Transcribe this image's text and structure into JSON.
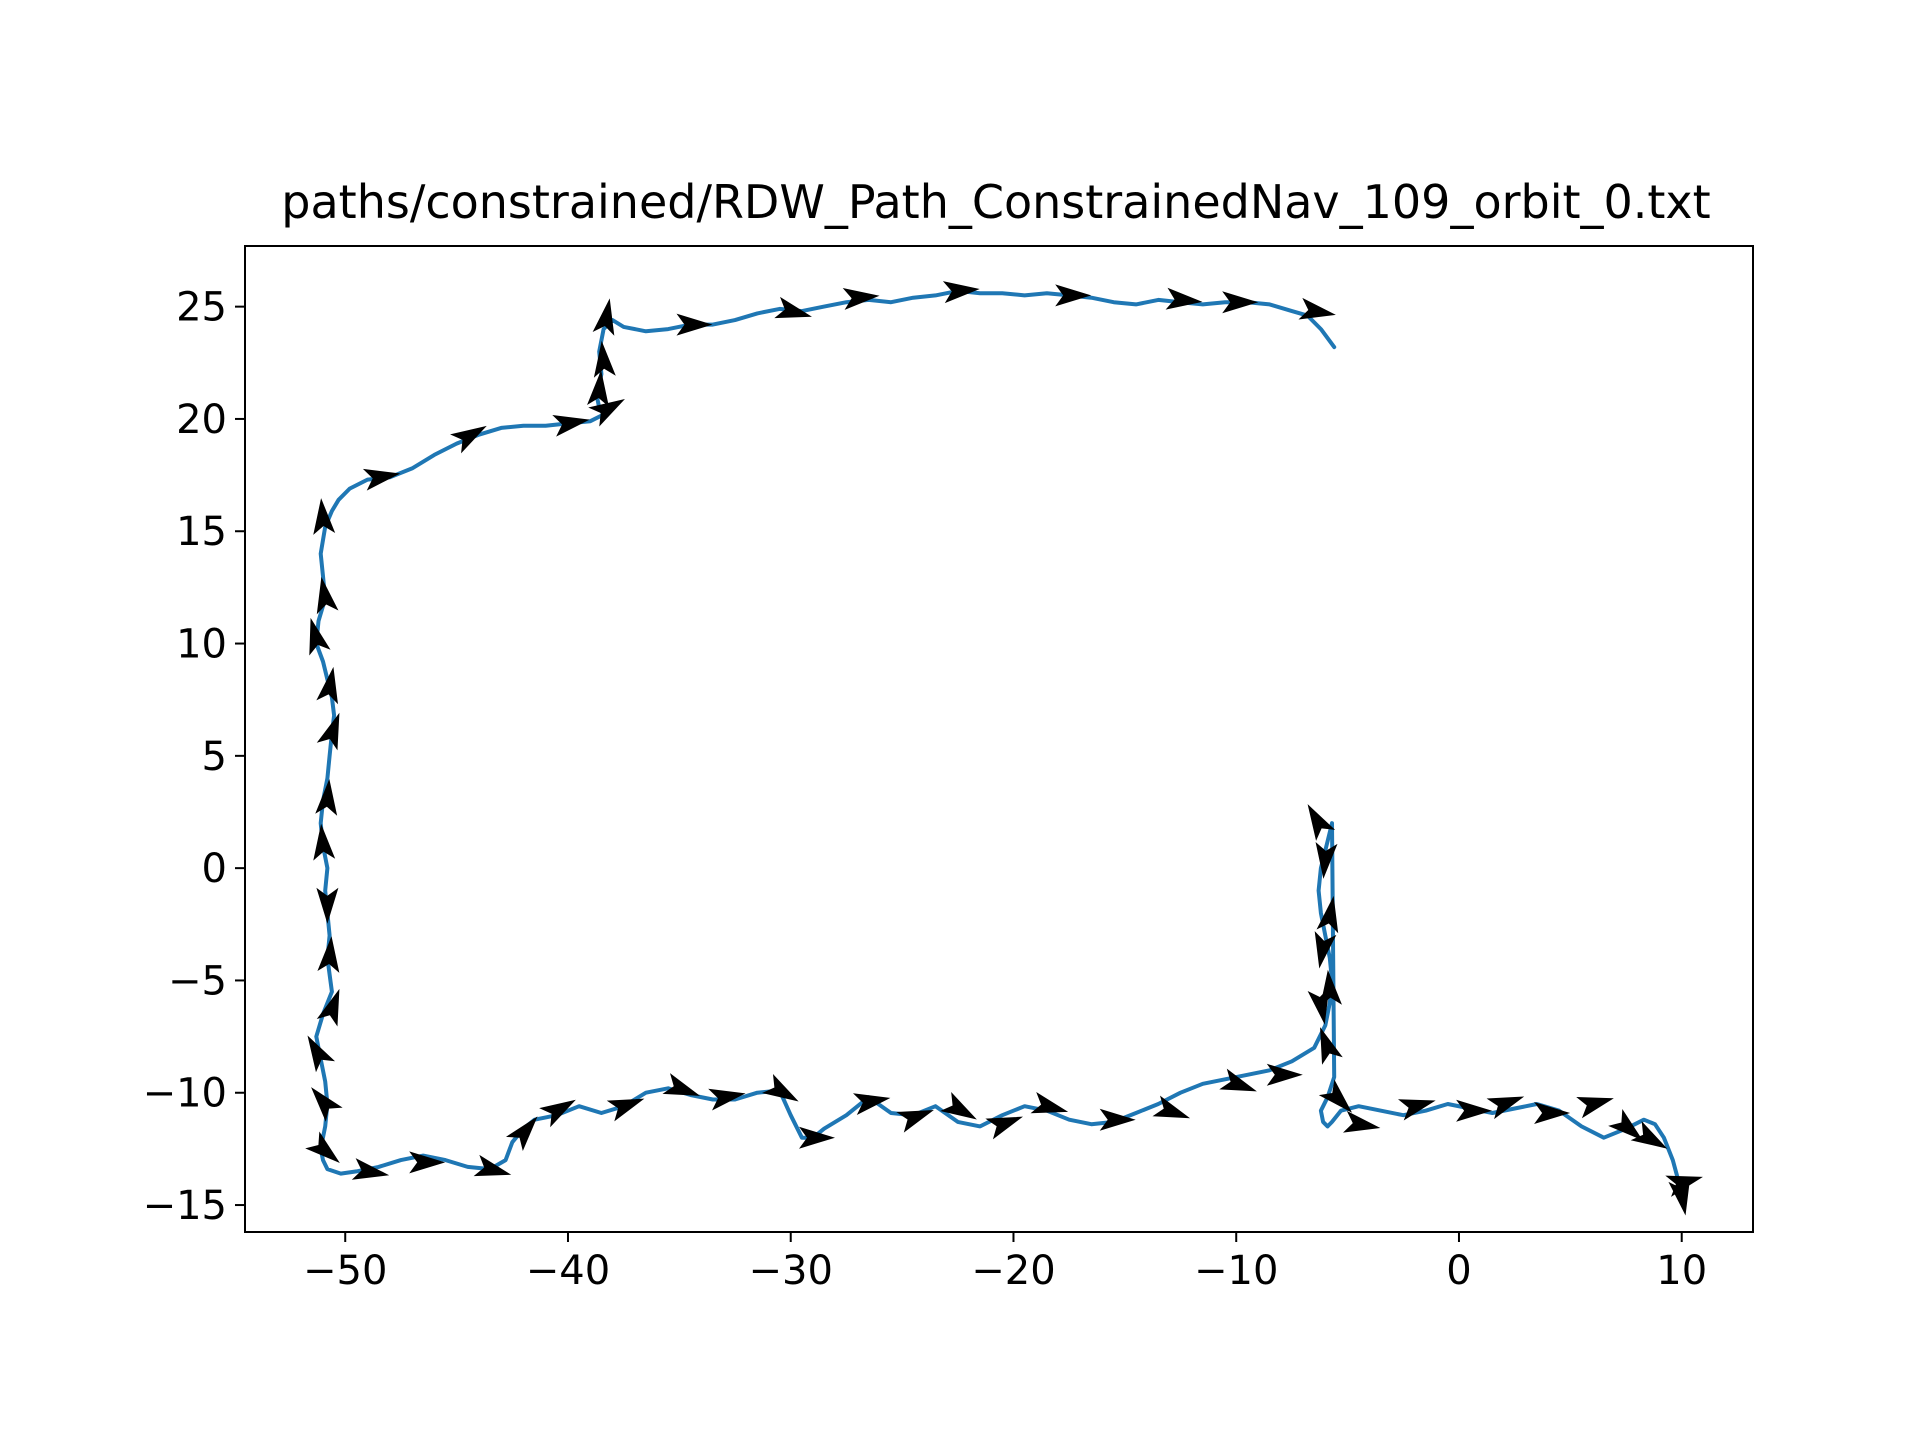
{
  "chart_data": {
    "type": "line",
    "title": "paths/constrained/RDW_Path_ConstrainedNav_109_orbit_0.txt",
    "xlabel": "",
    "ylabel": "",
    "xlim": [
      -54.5,
      13.2
    ],
    "ylim": [
      -16.2,
      27.7
    ],
    "xticks": [
      -50,
      -40,
      -30,
      -20,
      -10,
      0,
      10
    ],
    "yticks": [
      -15,
      -10,
      -5,
      0,
      5,
      10,
      15,
      20,
      25
    ],
    "xtick_labels": [
      "−50",
      "−40",
      "−30",
      "−20",
      "−10",
      "0",
      "10"
    ],
    "ytick_labels": [
      "−15",
      "−10",
      "−5",
      "0",
      "5",
      "10",
      "15",
      "20",
      "25"
    ],
    "grid": false,
    "legend": "none",
    "line_color": "#1f77b4",
    "arrow_color": "#000000",
    "series": [
      {
        "x": [
          -5.6,
          -6.2,
          -6.8,
          -7.5,
          -8.5,
          -9.5,
          -10.5,
          -11.5,
          -12.5,
          -13.5,
          -14.5,
          -15.5,
          -16.5,
          -17.5,
          -18.5,
          -19.5,
          -20.5,
          -21.5,
          -22.5,
          -23.5,
          -24.5,
          -25.5,
          -26.5,
          -27.5,
          -28.5,
          -29.5,
          -30.5,
          -31.5,
          -32.5,
          -33.5,
          -34.5,
          -35.5,
          -36.5,
          -37.5,
          -38.0,
          -38.4,
          -38.6,
          -38.5,
          -38.7,
          -38.6,
          -38.4,
          -39.0,
          -40.0,
          -41.0,
          -42.0,
          -43.0,
          -44.0,
          -45.0,
          -46.0,
          -47.0,
          -48.0,
          -49.0,
          -49.8,
          -50.3,
          -50.6,
          -50.9,
          -51.1,
          -51.0,
          -50.9,
          -51.2,
          -51.3,
          -51.0,
          -50.8,
          -50.6,
          -50.5,
          -50.6,
          -50.7,
          -50.8,
          -51.0,
          -51.1,
          -51.0,
          -50.8,
          -50.9,
          -50.8,
          -50.7,
          -50.8,
          -50.6,
          -51.0,
          -51.3,
          -51.1,
          -50.9,
          -50.8,
          -50.9,
          -51.1,
          -51.0,
          -50.8,
          -50.2,
          -49.5,
          -48.5,
          -47.5,
          -46.5,
          -45.5,
          -44.5,
          -43.5,
          -42.8,
          -42.5,
          -42.0,
          -41.5,
          -40.5,
          -39.5,
          -38.5,
          -37.5,
          -36.5,
          -35.5,
          -34.5,
          -33.5,
          -32.5,
          -31.5,
          -30.5,
          -30.0,
          -29.5,
          -29.0,
          -28.5,
          -27.5,
          -26.5,
          -25.5,
          -24.5,
          -23.5,
          -22.5,
          -21.5,
          -20.5,
          -19.5,
          -18.5,
          -17.5,
          -16.5,
          -15.5,
          -14.5,
          -13.5,
          -12.5,
          -11.5,
          -10.5,
          -9.5,
          -8.5,
          -7.5,
          -6.5,
          -6.0,
          -5.8,
          -5.7,
          -5.8,
          -6.0,
          -6.2,
          -6.3,
          -6.2,
          -5.9,
          -5.7,
          -5.6,
          -5.9,
          -6.2,
          -6.1,
          -5.9,
          -5.7,
          -5.3,
          -4.5,
          -3.5,
          -2.5,
          -1.5,
          -0.5,
          0.5,
          1.5,
          2.5,
          3.5,
          4.5,
          5.5,
          6.5,
          7.5,
          8.3,
          8.8,
          9.2,
          9.6,
          9.9,
          10.0
        ],
        "y": [
          23.2,
          24.0,
          24.6,
          24.8,
          25.1,
          25.2,
          25.2,
          25.1,
          25.2,
          25.3,
          25.1,
          25.2,
          25.4,
          25.5,
          25.6,
          25.5,
          25.6,
          25.6,
          25.7,
          25.5,
          25.4,
          25.2,
          25.3,
          25.2,
          25.0,
          24.8,
          24.9,
          24.7,
          24.4,
          24.2,
          24.2,
          24.0,
          23.9,
          24.1,
          24.4,
          24.0,
          23.0,
          22.0,
          21.0,
          20.5,
          20.2,
          19.9,
          19.8,
          19.7,
          19.7,
          19.6,
          19.3,
          18.9,
          18.4,
          17.8,
          17.4,
          17.3,
          16.9,
          16.4,
          15.9,
          15.2,
          14.0,
          13.0,
          12.0,
          11.0,
          10.0,
          9.2,
          8.4,
          7.6,
          6.8,
          6.0,
          5.0,
          4.0,
          3.0,
          2.0,
          1.0,
          0.0,
          -1.0,
          -2.0,
          -3.0,
          -4.0,
          -5.5,
          -6.5,
          -7.5,
          -8.5,
          -9.5,
          -10.5,
          -11.5,
          -12.5,
          -13.0,
          -13.4,
          -13.6,
          -13.5,
          -13.3,
          -13.0,
          -12.8,
          -13.0,
          -13.3,
          -13.4,
          -13.0,
          -12.2,
          -11.6,
          -11.2,
          -11.0,
          -10.6,
          -10.9,
          -10.6,
          -10.0,
          -9.8,
          -10.1,
          -10.3,
          -10.3,
          -10.0,
          -9.9,
          -11.0,
          -12.0,
          -12.0,
          -11.6,
          -11.0,
          -10.2,
          -10.9,
          -11.0,
          -10.6,
          -11.3,
          -11.5,
          -11.0,
          -10.6,
          -10.8,
          -11.2,
          -11.4,
          -11.3,
          -10.9,
          -10.5,
          -10.0,
          -9.6,
          -9.4,
          -9.2,
          -9.0,
          -8.6,
          -8.0,
          -7.0,
          -6.0,
          -5.0,
          -4.0,
          -3.0,
          -2.0,
          -1.0,
          0.0,
          1.2,
          2.0,
          -9.3,
          -10.2,
          -10.8,
          -11.3,
          -11.5,
          -11.3,
          -10.8,
          -10.6,
          -10.8,
          -11.0,
          -10.8,
          -10.5,
          -10.7,
          -10.9,
          -10.7,
          -10.5,
          -10.8,
          -11.5,
          -12.0,
          -11.6,
          -11.2,
          -11.4,
          -12.0,
          -13.0,
          -14.1,
          -14.6
        ]
      }
    ],
    "arrows": {
      "x": [
        -6.5,
        -10.0,
        -12.5,
        -17.5,
        -22.5,
        -27.0,
        -30.0,
        -34.5,
        -38.3,
        -38.4,
        -38.6,
        -38.3,
        -40.0,
        -44.5,
        -48.5,
        -51.0,
        -50.9,
        -51.3,
        -50.7,
        -50.6,
        -50.8,
        -51.0,
        -50.8,
        -50.7,
        -50.6,
        -51.2,
        -50.9,
        -51.0,
        -49.0,
        -46.5,
        -43.5,
        -42.0,
        -40.5,
        -37.5,
        -35.0,
        -33.0,
        -30.5,
        -29.0,
        -26.5,
        -24.5,
        -22.5,
        -20.5,
        -18.5,
        -15.5,
        -13.0,
        -10.0,
        -8.0,
        -6.3,
        -6.0,
        -5.8,
        -6.1,
        -5.8,
        -6.2,
        -5.9,
        -5.5,
        -4.5,
        -2.0,
        0.5,
        2.0,
        4.0,
        6.0,
        7.5,
        8.5,
        10.0,
        10.0
      ],
      "y": [
        24.8,
        25.2,
        25.3,
        25.5,
        25.7,
        25.4,
        24.8,
        24.2,
        24.4,
        22.5,
        21.2,
        20.4,
        19.8,
        19.2,
        17.4,
        15.5,
        12.0,
        10.2,
        8.0,
        6.0,
        3.0,
        1.0,
        -1.5,
        -4.0,
        -6.3,
        -8.3,
        -10.5,
        -12.5,
        -13.5,
        -13.1,
        -13.4,
        -11.8,
        -10.8,
        -10.6,
        -9.8,
        -10.2,
        -9.9,
        -12.0,
        -10.4,
        -11.1,
        -10.7,
        -11.4,
        -10.6,
        -11.2,
        -10.8,
        -9.6,
        -9.2,
        2.0,
        0.5,
        -2.2,
        -3.5,
        -5.5,
        -6.0,
        -8.0,
        -10.2,
        -11.4,
        -10.6,
        -10.8,
        -10.5,
        -10.9,
        -10.5,
        -11.5,
        -12.0,
        -14.0,
        -14.5
      ],
      "angle_deg": [
        -10,
        0,
        -5,
        0,
        5,
        5,
        -15,
        0,
        80,
        95,
        85,
        30,
        10,
        30,
        10,
        95,
        100,
        105,
        80,
        70,
        85,
        95,
        -90,
        85,
        70,
        120,
        130,
        -40,
        -10,
        0,
        -15,
        50,
        30,
        20,
        -20,
        10,
        -30,
        0,
        10,
        20,
        -30,
        20,
        -15,
        0,
        -20,
        -20,
        0,
        120,
        -95,
        80,
        -100,
        95,
        -80,
        110,
        -45,
        -10,
        15,
        0,
        20,
        0,
        15,
        -40,
        -30,
        15,
        -80
      ]
    }
  }
}
